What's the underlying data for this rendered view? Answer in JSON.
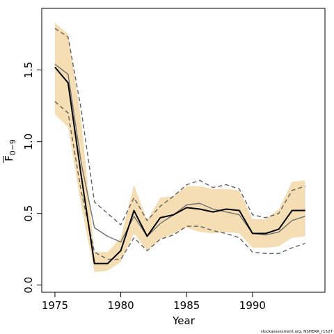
{
  "chart_data": {
    "type": "line",
    "xlabel": "Year",
    "ylabel_main": "F",
    "ylabel_subscript": "0−9",
    "xlim": [
      1974,
      1995.5
    ],
    "ylim": [
      -0.05,
      1.93
    ],
    "x_ticks": [
      1975,
      1980,
      1985,
      1990
    ],
    "x_tick_labels": [
      "1975",
      "1980",
      "1985",
      "1990"
    ],
    "y_ticks": [
      0.0,
      0.5,
      1.0,
      1.5
    ],
    "y_tick_labels": [
      "0.0",
      "0.5",
      "1.0",
      "1.5"
    ],
    "grid": false,
    "x": [
      1975,
      1976,
      1977,
      1978,
      1979,
      1980,
      1981,
      1982,
      1983,
      1984,
      1985,
      1986,
      1987,
      1988,
      1989,
      1990,
      1991,
      1992,
      1993,
      1994
    ],
    "band": {
      "color": "#f5deb3",
      "lower": [
        1.19,
        1.1,
        0.55,
        0.09,
        0.1,
        0.16,
        0.36,
        0.24,
        0.32,
        0.36,
        0.4,
        0.37,
        0.36,
        0.37,
        0.36,
        0.26,
        0.26,
        0.27,
        0.33,
        0.34
      ],
      "upper": [
        1.83,
        1.75,
        1.15,
        0.23,
        0.23,
        0.33,
        0.7,
        0.45,
        0.61,
        0.62,
        0.69,
        0.69,
        0.67,
        0.67,
        0.66,
        0.46,
        0.46,
        0.53,
        0.72,
        0.73
      ]
    },
    "series": [
      {
        "role": "estimate",
        "color": "#000000",
        "style": "solid",
        "values": [
          1.52,
          1.41,
          0.76,
          0.15,
          0.15,
          0.24,
          0.52,
          0.34,
          0.47,
          0.49,
          0.54,
          0.53,
          0.51,
          0.53,
          0.52,
          0.36,
          0.36,
          0.39,
          0.52,
          0.52
        ]
      },
      {
        "role": "comparison",
        "color": "#707070",
        "style": "solid",
        "values": [
          1.54,
          1.47,
          0.85,
          0.4,
          0.34,
          0.3,
          0.48,
          0.34,
          0.43,
          0.49,
          0.56,
          0.57,
          0.53,
          0.51,
          0.49,
          0.36,
          0.35,
          0.37,
          0.45,
          0.48
        ]
      },
      {
        "role": "upper-dashed",
        "color": "#606060",
        "style": "dashed",
        "values": [
          1.79,
          1.73,
          1.22,
          0.58,
          0.5,
          0.42,
          0.61,
          0.45,
          0.55,
          0.62,
          0.7,
          0.73,
          0.68,
          0.7,
          0.67,
          0.49,
          0.47,
          0.5,
          0.66,
          0.69
        ]
      },
      {
        "role": "lower-dashed",
        "color": "#606060",
        "style": "dashed",
        "values": [
          1.28,
          1.2,
          0.65,
          0.23,
          0.18,
          0.18,
          0.33,
          0.24,
          0.32,
          0.35,
          0.41,
          0.41,
          0.38,
          0.36,
          0.33,
          0.23,
          0.22,
          0.22,
          0.26,
          0.29
        ]
      }
    ]
  },
  "credit": "stockassessment.org, NSHERR_r1527"
}
